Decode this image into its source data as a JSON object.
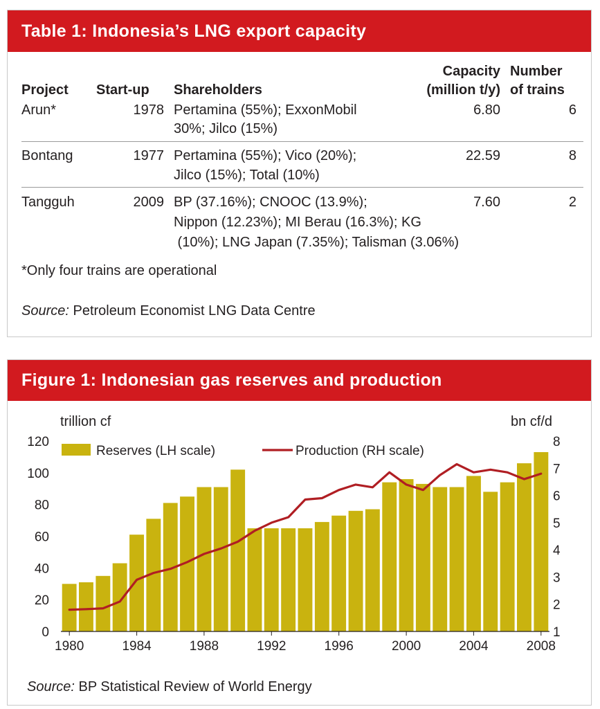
{
  "table": {
    "title": "Table 1: Indonesia’s LNG export capacity",
    "headers": {
      "project": "Project",
      "startup": "Start-up",
      "shareholders": "Shareholders",
      "capacity_line1": "Capacity",
      "capacity_line2": "(million t/y)",
      "trains_line1": "Number",
      "trains_line2": "of trains"
    },
    "rows": [
      {
        "project": "Arun*",
        "startup": "1978",
        "shareholders": [
          "Pertamina (55%); ExxonMobil",
          "30%; Jilco (15%)"
        ],
        "capacity": "6.80",
        "trains": "6"
      },
      {
        "project": "Bontang",
        "startup": "1977",
        "shareholders": [
          "Pertamina (55%); Vico (20%);",
          "Jilco (15%); Total (10%)"
        ],
        "capacity": "22.59",
        "trains": "8"
      },
      {
        "project": "Tangguh",
        "startup": "2009",
        "shareholders": [
          "BP (37.16%); CNOOC (13.9%);",
          "Nippon (12.23%); MI Berau (16.3%); KG",
          " (10%); LNG Japan (7.35%); Talisman (3.06%)"
        ],
        "capacity": "7.60",
        "trains": "2"
      }
    ],
    "footnote": "*Only four trains are operational",
    "source_label": "Source:",
    "source_text": " Petroleum Economist LNG Data Centre"
  },
  "figure": {
    "title": "Figure 1: Indonesian gas reserves and production",
    "source_label": "Source:",
    "source_text": " BP Statistical Review of World Energy"
  },
  "chart_data": {
    "type": "bar",
    "title": "Figure 1: Indonesian gas reserves and production",
    "x": [
      1980,
      1981,
      1982,
      1983,
      1984,
      1985,
      1986,
      1987,
      1988,
      1989,
      1990,
      1991,
      1992,
      1993,
      1994,
      1995,
      1996,
      1997,
      1998,
      1999,
      2000,
      2001,
      2002,
      2003,
      2004,
      2005,
      2006,
      2007,
      2008
    ],
    "x_ticks": [
      "1980",
      "1984",
      "1988",
      "1992",
      "1996",
      "2000",
      "2004",
      "2008"
    ],
    "series": [
      {
        "name": "Reserves (LH scale)",
        "type": "bar",
        "axis": "left",
        "color": "#c9b30f",
        "values": [
          30,
          31,
          35,
          43,
          61,
          71,
          81,
          85,
          91,
          91,
          102,
          65,
          65,
          65,
          65,
          69,
          73,
          76,
          77,
          94,
          96,
          93,
          91,
          91,
          98,
          88,
          94,
          106,
          113
        ]
      },
      {
        "name": "Production (RH scale)",
        "type": "line",
        "axis": "right",
        "color": "#b01e23",
        "values": [
          1.8,
          1.82,
          1.85,
          2.1,
          2.9,
          3.15,
          3.3,
          3.55,
          3.85,
          4.05,
          4.3,
          4.7,
          5.0,
          5.2,
          5.85,
          5.9,
          6.2,
          6.4,
          6.3,
          6.85,
          6.4,
          6.2,
          6.75,
          7.15,
          6.85,
          6.95,
          6.85,
          6.6,
          6.8
        ]
      }
    ],
    "ylabel_left": "trillion cf",
    "ylabel_right": "bn cf/d",
    "ylim_left": [
      0,
      120
    ],
    "ylim_right": [
      1,
      8
    ],
    "yticks_left": [
      "0",
      "20",
      "40",
      "60",
      "80",
      "100",
      "120"
    ],
    "yticks_right": [
      "1",
      "2",
      "3",
      "4",
      "5",
      "6",
      "7",
      "8"
    ],
    "grid": false,
    "legend": "top-left"
  }
}
